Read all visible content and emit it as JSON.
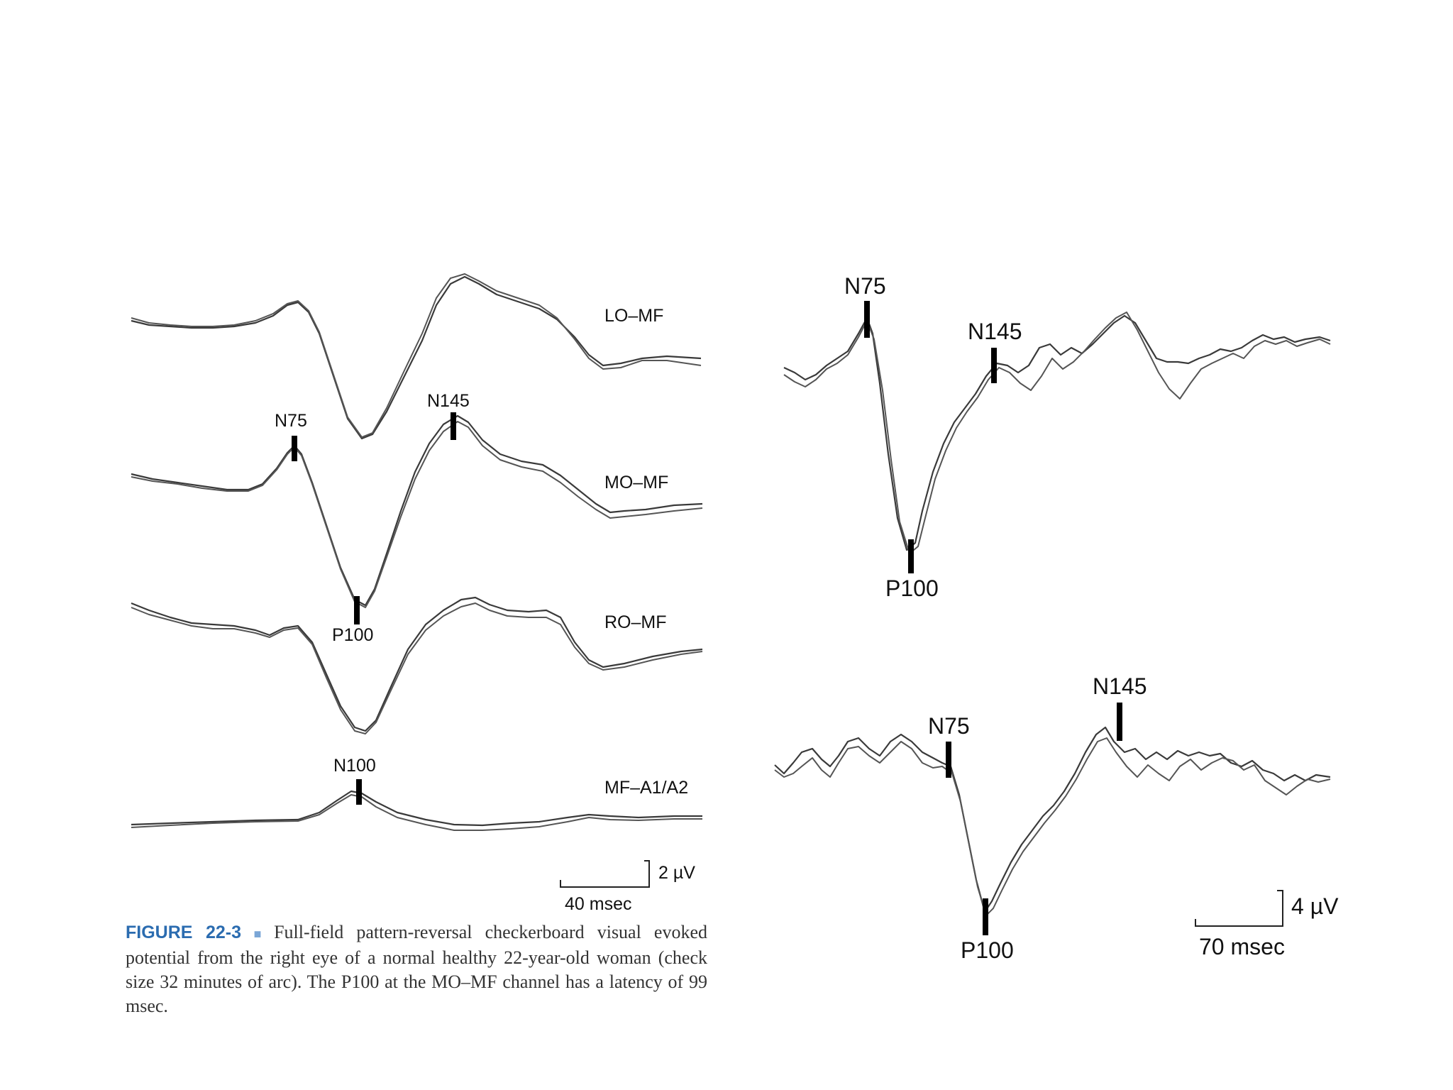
{
  "left_panel": {
    "channels": [
      {
        "label": "LO–MF"
      },
      {
        "label": "MO–MF"
      },
      {
        "label": "RO–MF"
      },
      {
        "label": "MF–A1/A2"
      }
    ],
    "peak_labels": {
      "n75": "N75",
      "n145": "N145",
      "p100": "P100",
      "n100": "N100"
    },
    "scale": {
      "amplitude": "2 µV",
      "time": "40 msec"
    }
  },
  "right_panel": {
    "top": {
      "n75": "N75",
      "n145": "N145",
      "p100": "P100"
    },
    "bottom": {
      "n75": "N75",
      "n145": "N145",
      "p100": "P100"
    },
    "scale": {
      "amplitude": "4 µV",
      "time": "70 msec"
    }
  },
  "caption": {
    "figure_label": "FIGURE 22-3",
    "bullet": "■",
    "text": "Full-field pattern-reversal checkerboard visual evoked potential from the right eye of a normal healthy 22-year-old woman (check size 32 minutes of arc). The P100 at the MO–MF channel has a latency of 99 msec."
  },
  "colors": {
    "trace": "#3a3a3a",
    "marker": "#000000",
    "figure_label": "#2b6cb0"
  }
}
